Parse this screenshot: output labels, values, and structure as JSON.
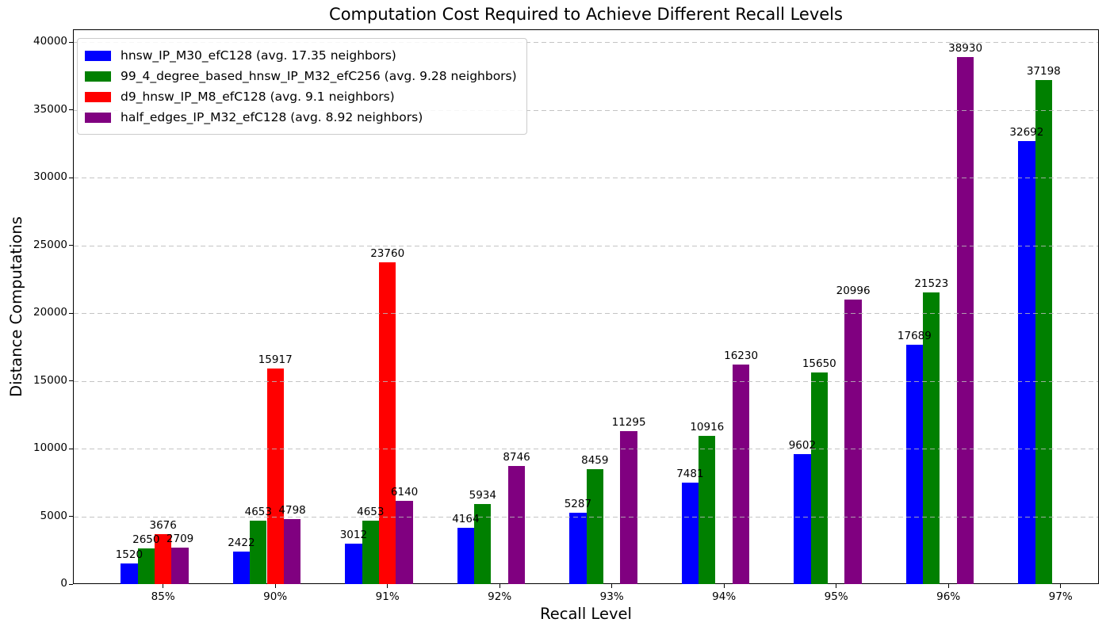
{
  "title": "Computation Cost Required to Achieve Different Recall Levels",
  "chart_data": {
    "type": "bar",
    "title": "Computation Cost Required to Achieve Different Recall Levels",
    "xlabel": "Recall Level",
    "ylabel": "Distance Computations",
    "categories": [
      "85%",
      "90%",
      "91%",
      "92%",
      "93%",
      "94%",
      "95%",
      "96%",
      "97%"
    ],
    "y_ticks": [
      0,
      5000,
      10000,
      15000,
      20000,
      25000,
      30000,
      35000,
      40000
    ],
    "ylim": [
      0,
      40950
    ],
    "grid": "horizontal-dashed",
    "legend_position": "upper-left",
    "series": [
      {
        "name": "hnsw_IP_M30_efC128",
        "legend": "hnsw_IP_M30_efC128 (avg. 17.35 neighbors)",
        "color": "#0000ff",
        "values": [
          1520,
          2422,
          3012,
          4164,
          5287,
          7481,
          9602,
          17689,
          32692
        ]
      },
      {
        "name": "99_4_degree_based_hnsw_IP_M32_efC256",
        "legend": "99_4_degree_based_hnsw_IP_M32_efC256 (avg. 9.28 neighbors)",
        "color": "#008000",
        "values": [
          2650,
          4653,
          4653,
          5934,
          8459,
          10916,
          15650,
          21523,
          37198
        ]
      },
      {
        "name": "d9_hnsw_IP_M8_efC128",
        "legend": "d9_hnsw_IP_M8_efC128 (avg. 9.1 neighbors)",
        "color": "#ff0000",
        "values": [
          3676,
          15917,
          23760,
          0,
          0,
          0,
          0,
          0,
          0
        ]
      },
      {
        "name": "half_edges_IP_M32_efC128",
        "legend": "half_edges_IP_M32_efC128 (avg. 8.92 neighbors)",
        "color": "#800080",
        "values": [
          2709,
          4798,
          6140,
          8746,
          11295,
          16230,
          20996,
          38930,
          0
        ]
      }
    ]
  }
}
